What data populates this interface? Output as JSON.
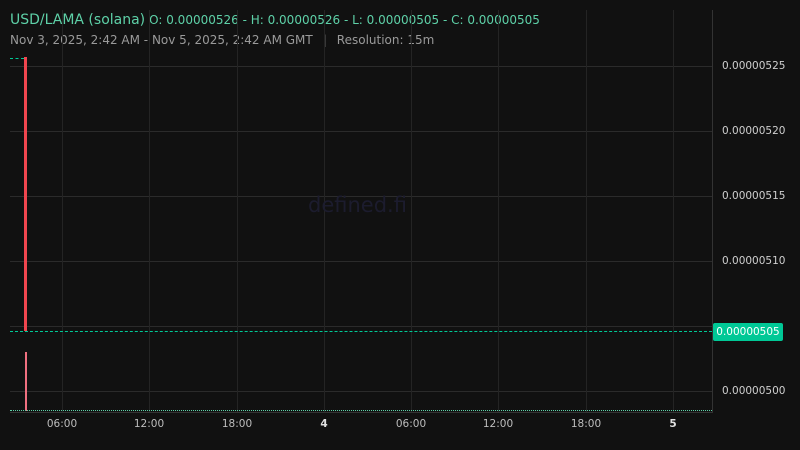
{
  "header": {
    "symbol": "USD/LAMA (solana)",
    "ohlc": "O: 0.00000526 - H: 0.00000526 - L: 0.00000505 - C: 0.00000505",
    "range": "Nov 3, 2025, 2:42 AM - Nov 5, 2025, 2:42 AM GMT",
    "separator": "|",
    "resolution": "Resolution: 15m"
  },
  "watermark": "defined.fi",
  "price_axis": {
    "labels": [
      "0.00000525",
      "0.00000520",
      "0.00000515",
      "0.00000510",
      "0.00000500"
    ],
    "current_price": "0.00000505"
  },
  "time_axis": {
    "labels": [
      "06:00",
      "12:00",
      "18:00",
      "4",
      "06:00",
      "12:00",
      "18:00",
      "5"
    ]
  },
  "colors": {
    "background": "#111111",
    "up": "#00c896",
    "down": "#f0464f",
    "title": "#5ed1a8"
  }
}
